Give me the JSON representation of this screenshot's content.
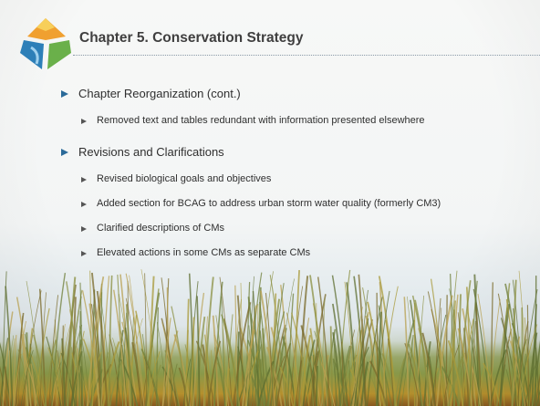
{
  "slide": {
    "title": "Chapter 5. Conservation Strategy",
    "bullets": [
      {
        "text": "Chapter Reorganization (cont.)",
        "subs": [
          "Removed text and tables redundant with information presented elsewhere"
        ]
      },
      {
        "text": "Revisions and Clarifications",
        "subs": [
          "Revised biological goals and objectives",
          "Added section for BCAG to address urban storm water quality (formerly CM3)",
          "Clarified descriptions of CMs",
          "Elevated actions in some CMs as separate CMs"
        ]
      }
    ]
  }
}
